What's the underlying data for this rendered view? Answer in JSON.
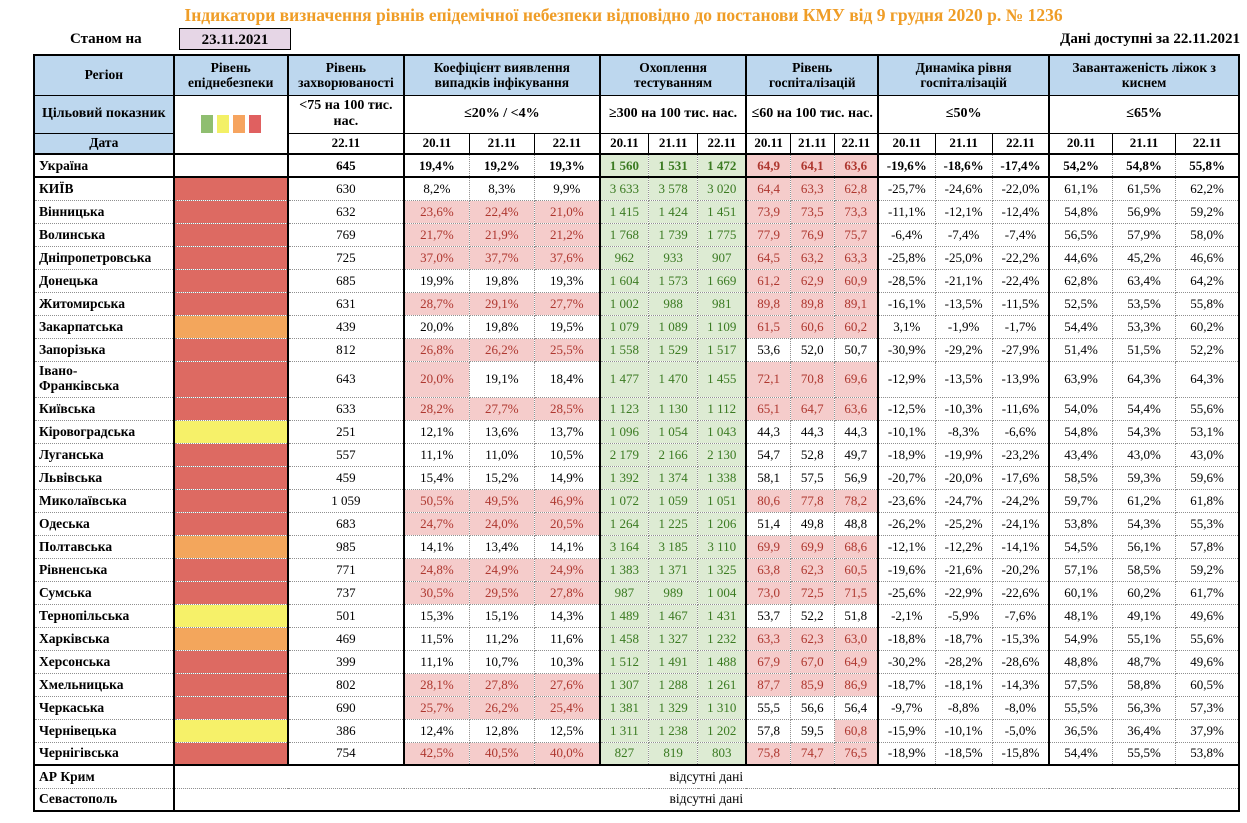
{
  "title": "Індикатори визначення рівнів епідемічної небезпеки відповідно до постанови КМУ від 9 грудня 2020 р. № 1236",
  "meta": {
    "as_of_label": "Станом на",
    "as_of_date": "23.11.2021",
    "available_label": "Дані доступні за",
    "available_date": "22.11.2021"
  },
  "columns": {
    "region": "Регіон",
    "epi_level": "Рівень епіднебезпеки",
    "incidence": "Рівень захворюваності",
    "detection": "Коефіцієнт виявлення випадків інфікування",
    "testing": "Охоплення тестуванням",
    "hospitalization": "Рівень госпіталізацій",
    "hosp_dynamics": "Динаміка рівня госпіталізацій",
    "beds": "Завантаженість ліжок з киснем"
  },
  "targets": {
    "label": "Цільовий показник",
    "incidence": "<75 на 100 тис. нас.",
    "detection": "≤20% / <4%",
    "testing": "≥300 на 100 тис. нас.",
    "hospitalization": "≤60 на 100 тис. нас.",
    "hosp_dynamics": "≤50%",
    "beds": "≤65%",
    "legend_colors": [
      "#8fbe70",
      "#f3f066",
      "#f6a45f",
      "#e06060"
    ]
  },
  "dates": {
    "label": "Дата",
    "incidence": "22.11",
    "d0": "20.11",
    "d1": "21.11",
    "d2": "22.11"
  },
  "no_data_text": "відсутні дані",
  "colors": {
    "header_bg": "#bdd7ee",
    "title": "#ef9d27",
    "date_box_bg": "#e6d6e6",
    "green_bg": "#ddebd3",
    "green_text": "#3a7a21",
    "pink_bg": "#f5cccb",
    "red_text": "#ae372f",
    "epi": {
      "red": "#dd6a62",
      "orange": "#f3a65c",
      "yellow": "#f6f169",
      "none": ""
    }
  },
  "rows": [
    {
      "name": "Україна",
      "epi": "none",
      "bold": true,
      "hr": true,
      "inc": "645",
      "det": [
        "19,4%",
        "19,2%",
        "19,3%"
      ],
      "det_hl": [
        0,
        0,
        0
      ],
      "test": [
        "1 560",
        "1 531",
        "1 472"
      ],
      "hosp": [
        "64,9",
        "64,1",
        "63,6"
      ],
      "hosp_hl": [
        1,
        1,
        1
      ],
      "dyn": [
        "-19,6%",
        "-18,6%",
        "-17,4%"
      ],
      "beds": [
        "54,2%",
        "54,8%",
        "55,8%"
      ]
    },
    {
      "name": "КИЇВ",
      "epi": "red",
      "inc": "630",
      "det": [
        "8,2%",
        "8,3%",
        "9,9%"
      ],
      "det_hl": [
        0,
        0,
        0
      ],
      "test": [
        "3 633",
        "3 578",
        "3 020"
      ],
      "hosp": [
        "64,4",
        "63,3",
        "62,8"
      ],
      "hosp_hl": [
        1,
        1,
        1
      ],
      "dyn": [
        "-25,7%",
        "-24,6%",
        "-22,0%"
      ],
      "beds": [
        "61,1%",
        "61,5%",
        "62,2%"
      ]
    },
    {
      "name": "Вінницька",
      "epi": "red",
      "inc": "632",
      "det": [
        "23,6%",
        "22,4%",
        "21,0%"
      ],
      "det_hl": [
        1,
        1,
        1
      ],
      "test": [
        "1 415",
        "1 424",
        "1 451"
      ],
      "hosp": [
        "73,9",
        "73,5",
        "73,3"
      ],
      "hosp_hl": [
        1,
        1,
        1
      ],
      "dyn": [
        "-11,1%",
        "-12,1%",
        "-12,4%"
      ],
      "beds": [
        "54,8%",
        "56,9%",
        "59,2%"
      ]
    },
    {
      "name": "Волинська",
      "epi": "red",
      "inc": "769",
      "det": [
        "21,7%",
        "21,9%",
        "21,2%"
      ],
      "det_hl": [
        1,
        1,
        1
      ],
      "test": [
        "1 768",
        "1 739",
        "1 775"
      ],
      "hosp": [
        "77,9",
        "76,9",
        "75,7"
      ],
      "hosp_hl": [
        1,
        1,
        1
      ],
      "dyn": [
        "-6,4%",
        "-7,4%",
        "-7,4%"
      ],
      "beds": [
        "56,5%",
        "57,9%",
        "58,0%"
      ]
    },
    {
      "name": "Дніпропетровська",
      "epi": "red",
      "inc": "725",
      "det": [
        "37,0%",
        "37,7%",
        "37,6%"
      ],
      "det_hl": [
        1,
        1,
        1
      ],
      "test": [
        "962",
        "933",
        "907"
      ],
      "hosp": [
        "64,5",
        "63,2",
        "63,3"
      ],
      "hosp_hl": [
        1,
        1,
        1
      ],
      "dyn": [
        "-25,8%",
        "-25,0%",
        "-22,2%"
      ],
      "beds": [
        "44,6%",
        "45,2%",
        "46,6%"
      ]
    },
    {
      "name": "Донецька",
      "epi": "red",
      "inc": "685",
      "det": [
        "19,9%",
        "19,8%",
        "19,3%"
      ],
      "det_hl": [
        0,
        0,
        0
      ],
      "test": [
        "1 604",
        "1 573",
        "1 669"
      ],
      "hosp": [
        "61,2",
        "62,9",
        "60,9"
      ],
      "hosp_hl": [
        1,
        1,
        1
      ],
      "dyn": [
        "-28,5%",
        "-21,1%",
        "-22,4%"
      ],
      "beds": [
        "62,8%",
        "63,4%",
        "64,2%"
      ]
    },
    {
      "name": "Житомирська",
      "epi": "red",
      "inc": "631",
      "det": [
        "28,7%",
        "29,1%",
        "27,7%"
      ],
      "det_hl": [
        1,
        1,
        1
      ],
      "test": [
        "1 002",
        "988",
        "981"
      ],
      "hosp": [
        "89,8",
        "89,8",
        "89,1"
      ],
      "hosp_hl": [
        1,
        1,
        1
      ],
      "dyn": [
        "-16,1%",
        "-13,5%",
        "-11,5%"
      ],
      "beds": [
        "52,5%",
        "53,5%",
        "55,8%"
      ]
    },
    {
      "name": "Закарпатська",
      "epi": "orange",
      "inc": "439",
      "det": [
        "20,0%",
        "19,8%",
        "19,5%"
      ],
      "det_hl": [
        0,
        0,
        0
      ],
      "test": [
        "1 079",
        "1 089",
        "1 109"
      ],
      "hosp": [
        "61,5",
        "60,6",
        "60,2"
      ],
      "hosp_hl": [
        1,
        1,
        1
      ],
      "dyn": [
        "3,1%",
        "-1,9%",
        "-1,7%"
      ],
      "beds": [
        "54,4%",
        "53,3%",
        "60,2%"
      ]
    },
    {
      "name": "Запорізька",
      "epi": "red",
      "inc": "812",
      "det": [
        "26,8%",
        "26,2%",
        "25,5%"
      ],
      "det_hl": [
        1,
        1,
        1
      ],
      "test": [
        "1 558",
        "1 529",
        "1 517"
      ],
      "hosp": [
        "53,6",
        "52,0",
        "50,7"
      ],
      "hosp_hl": [
        0,
        0,
        0
      ],
      "dyn": [
        "-30,9%",
        "-29,2%",
        "-27,9%"
      ],
      "beds": [
        "51,4%",
        "51,5%",
        "52,2%"
      ]
    },
    {
      "name": "Івано-Франківська",
      "epi": "red",
      "two_line": true,
      "inc": "643",
      "det": [
        "20,0%",
        "19,1%",
        "18,4%"
      ],
      "det_hl": [
        1,
        0,
        0
      ],
      "test": [
        "1 477",
        "1 470",
        "1 455"
      ],
      "hosp": [
        "72,1",
        "70,8",
        "69,6"
      ],
      "hosp_hl": [
        1,
        1,
        1
      ],
      "dyn": [
        "-12,9%",
        "-13,5%",
        "-13,9%"
      ],
      "beds": [
        "63,9%",
        "64,3%",
        "64,3%"
      ]
    },
    {
      "name": "Київська",
      "epi": "red",
      "inc": "633",
      "det": [
        "28,2%",
        "27,7%",
        "28,5%"
      ],
      "det_hl": [
        1,
        1,
        1
      ],
      "test": [
        "1 123",
        "1 130",
        "1 112"
      ],
      "hosp": [
        "65,1",
        "64,7",
        "63,6"
      ],
      "hosp_hl": [
        1,
        1,
        1
      ],
      "dyn": [
        "-12,5%",
        "-10,3%",
        "-11,6%"
      ],
      "beds": [
        "54,0%",
        "54,4%",
        "55,6%"
      ]
    },
    {
      "name": "Кіровоградська",
      "epi": "yellow",
      "inc": "251",
      "det": [
        "12,1%",
        "13,6%",
        "13,7%"
      ],
      "det_hl": [
        0,
        0,
        0
      ],
      "test": [
        "1 096",
        "1 054",
        "1 043"
      ],
      "hosp": [
        "44,3",
        "44,3",
        "44,3"
      ],
      "hosp_hl": [
        0,
        0,
        0
      ],
      "dyn": [
        "-10,1%",
        "-8,3%",
        "-6,6%"
      ],
      "beds": [
        "54,8%",
        "54,3%",
        "53,1%"
      ]
    },
    {
      "name": "Луганська",
      "epi": "red",
      "inc": "557",
      "det": [
        "11,1%",
        "11,0%",
        "10,5%"
      ],
      "det_hl": [
        0,
        0,
        0
      ],
      "test": [
        "2 179",
        "2 166",
        "2 130"
      ],
      "hosp": [
        "54,7",
        "52,8",
        "49,7"
      ],
      "hosp_hl": [
        0,
        0,
        0
      ],
      "dyn": [
        "-18,9%",
        "-19,9%",
        "-23,2%"
      ],
      "beds": [
        "43,4%",
        "43,0%",
        "43,0%"
      ]
    },
    {
      "name": "Львівська",
      "epi": "red",
      "inc": "459",
      "det": [
        "15,4%",
        "15,2%",
        "14,9%"
      ],
      "det_hl": [
        0,
        0,
        0
      ],
      "test": [
        "1 392",
        "1 374",
        "1 338"
      ],
      "hosp": [
        "58,1",
        "57,5",
        "56,9"
      ],
      "hosp_hl": [
        0,
        0,
        0
      ],
      "dyn": [
        "-20,7%",
        "-20,0%",
        "-17,6%"
      ],
      "beds": [
        "58,5%",
        "59,3%",
        "59,6%"
      ]
    },
    {
      "name": "Миколаївська",
      "epi": "red",
      "inc": "1 059",
      "det": [
        "50,5%",
        "49,5%",
        "46,9%"
      ],
      "det_hl": [
        1,
        1,
        1
      ],
      "test": [
        "1 072",
        "1 059",
        "1 051"
      ],
      "hosp": [
        "80,6",
        "77,8",
        "78,2"
      ],
      "hosp_hl": [
        1,
        1,
        1
      ],
      "dyn": [
        "-23,6%",
        "-24,7%",
        "-24,2%"
      ],
      "beds": [
        "59,7%",
        "61,2%",
        "61,8%"
      ]
    },
    {
      "name": "Одеська",
      "epi": "red",
      "inc": "683",
      "det": [
        "24,7%",
        "24,0%",
        "20,5%"
      ],
      "det_hl": [
        1,
        1,
        1
      ],
      "test": [
        "1 264",
        "1 225",
        "1 206"
      ],
      "hosp": [
        "51,4",
        "49,8",
        "48,8"
      ],
      "hosp_hl": [
        0,
        0,
        0
      ],
      "dyn": [
        "-26,2%",
        "-25,2%",
        "-24,1%"
      ],
      "beds": [
        "53,8%",
        "54,3%",
        "55,3%"
      ]
    },
    {
      "name": "Полтавська",
      "epi": "orange",
      "inc": "985",
      "det": [
        "14,1%",
        "13,4%",
        "14,1%"
      ],
      "det_hl": [
        0,
        0,
        0
      ],
      "test": [
        "3 164",
        "3 185",
        "3 110"
      ],
      "hosp": [
        "69,9",
        "69,9",
        "68,6"
      ],
      "hosp_hl": [
        1,
        1,
        1
      ],
      "dyn": [
        "-12,1%",
        "-12,2%",
        "-14,1%"
      ],
      "beds": [
        "54,5%",
        "56,1%",
        "57,8%"
      ]
    },
    {
      "name": "Рівненська",
      "epi": "red",
      "inc": "771",
      "det": [
        "24,8%",
        "24,9%",
        "24,9%"
      ],
      "det_hl": [
        1,
        1,
        1
      ],
      "test": [
        "1 383",
        "1 371",
        "1 325"
      ],
      "hosp": [
        "63,8",
        "62,3",
        "60,5"
      ],
      "hosp_hl": [
        1,
        1,
        1
      ],
      "dyn": [
        "-19,6%",
        "-21,6%",
        "-20,2%"
      ],
      "beds": [
        "57,1%",
        "58,5%",
        "59,2%"
      ]
    },
    {
      "name": "Сумська",
      "epi": "red",
      "inc": "737",
      "det": [
        "30,5%",
        "29,5%",
        "27,8%"
      ],
      "det_hl": [
        1,
        1,
        1
      ],
      "test": [
        "987",
        "989",
        "1 004"
      ],
      "hosp": [
        "73,0",
        "72,5",
        "71,5"
      ],
      "hosp_hl": [
        1,
        1,
        1
      ],
      "dyn": [
        "-25,6%",
        "-22,9%",
        "-22,6%"
      ],
      "beds": [
        "60,1%",
        "60,2%",
        "61,7%"
      ]
    },
    {
      "name": "Тернопільська",
      "epi": "yellow",
      "inc": "501",
      "det": [
        "15,3%",
        "15,1%",
        "14,3%"
      ],
      "det_hl": [
        0,
        0,
        0
      ],
      "test": [
        "1 489",
        "1 467",
        "1 431"
      ],
      "hosp": [
        "53,7",
        "52,2",
        "51,8"
      ],
      "hosp_hl": [
        0,
        0,
        0
      ],
      "dyn": [
        "-2,1%",
        "-5,9%",
        "-7,6%"
      ],
      "beds": [
        "48,1%",
        "49,1%",
        "49,6%"
      ]
    },
    {
      "name": "Харківська",
      "epi": "orange",
      "inc": "469",
      "det": [
        "11,5%",
        "11,2%",
        "11,6%"
      ],
      "det_hl": [
        0,
        0,
        0
      ],
      "test": [
        "1 458",
        "1 327",
        "1 232"
      ],
      "hosp": [
        "63,3",
        "62,3",
        "63,0"
      ],
      "hosp_hl": [
        1,
        1,
        1
      ],
      "dyn": [
        "-18,8%",
        "-18,7%",
        "-15,3%"
      ],
      "beds": [
        "54,9%",
        "55,1%",
        "55,6%"
      ]
    },
    {
      "name": "Херсонська",
      "epi": "red",
      "inc": "399",
      "det": [
        "11,1%",
        "10,7%",
        "10,3%"
      ],
      "det_hl": [
        0,
        0,
        0
      ],
      "test": [
        "1 512",
        "1 491",
        "1 488"
      ],
      "hosp": [
        "67,9",
        "67,0",
        "64,9"
      ],
      "hosp_hl": [
        1,
        1,
        1
      ],
      "dyn": [
        "-30,2%",
        "-28,2%",
        "-28,6%"
      ],
      "beds": [
        "48,8%",
        "48,7%",
        "49,6%"
      ]
    },
    {
      "name": "Хмельницька",
      "epi": "red",
      "inc": "802",
      "det": [
        "28,1%",
        "27,8%",
        "27,6%"
      ],
      "det_hl": [
        1,
        1,
        1
      ],
      "test": [
        "1 307",
        "1 288",
        "1 261"
      ],
      "hosp": [
        "87,7",
        "85,9",
        "86,9"
      ],
      "hosp_hl": [
        1,
        1,
        1
      ],
      "dyn": [
        "-18,7%",
        "-18,1%",
        "-14,3%"
      ],
      "beds": [
        "57,5%",
        "58,8%",
        "60,5%"
      ]
    },
    {
      "name": "Черкаська",
      "epi": "red",
      "inc": "690",
      "det": [
        "25,7%",
        "26,2%",
        "25,4%"
      ],
      "det_hl": [
        1,
        1,
        1
      ],
      "test": [
        "1 381",
        "1 329",
        "1 310"
      ],
      "hosp": [
        "55,5",
        "56,6",
        "56,4"
      ],
      "hosp_hl": [
        0,
        0,
        0
      ],
      "dyn": [
        "-9,7%",
        "-8,8%",
        "-8,0%"
      ],
      "beds": [
        "55,5%",
        "56,3%",
        "57,3%"
      ]
    },
    {
      "name": "Чернівецька",
      "epi": "yellow",
      "inc": "386",
      "det": [
        "12,4%",
        "12,8%",
        "12,5%"
      ],
      "det_hl": [
        0,
        0,
        0
      ],
      "test": [
        "1 311",
        "1 238",
        "1 202"
      ],
      "hosp": [
        "57,8",
        "59,5",
        "60,8"
      ],
      "hosp_hl": [
        0,
        0,
        1
      ],
      "dyn": [
        "-15,9%",
        "-10,1%",
        "-5,0%"
      ],
      "beds": [
        "36,5%",
        "36,4%",
        "37,9%"
      ]
    },
    {
      "name": "Чернігівська",
      "epi": "red",
      "hr": true,
      "inc": "754",
      "det": [
        "42,5%",
        "40,5%",
        "40,0%"
      ],
      "det_hl": [
        1,
        1,
        1
      ],
      "test": [
        "827",
        "819",
        "803"
      ],
      "hosp": [
        "75,8",
        "74,7",
        "76,5"
      ],
      "hosp_hl": [
        1,
        1,
        1
      ],
      "dyn": [
        "-18,9%",
        "-18,5%",
        "-15,8%"
      ],
      "beds": [
        "54,4%",
        "55,5%",
        "53,8%"
      ]
    },
    {
      "name": "АР Крим",
      "no_data": true
    },
    {
      "name": "Севастополь",
      "no_data": true
    }
  ]
}
